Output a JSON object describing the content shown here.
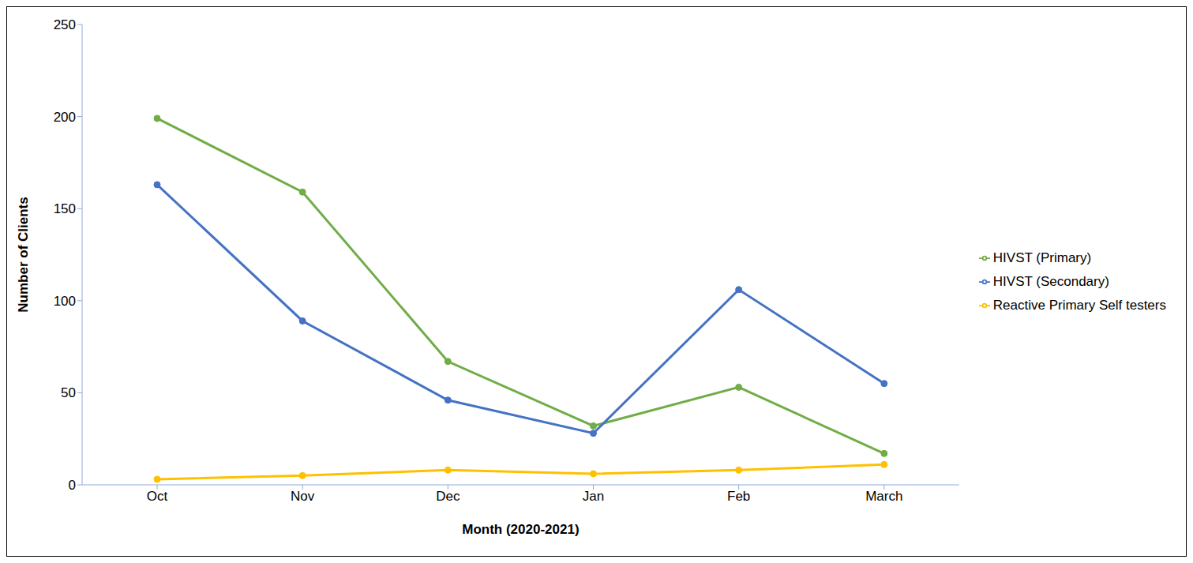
{
  "chart_data": {
    "type": "line",
    "x_label": "Month (2020-2021)",
    "y_label": "Number of Clients",
    "categories": [
      "Oct",
      "Nov",
      "Dec",
      "Jan",
      "Feb",
      "March"
    ],
    "series": [
      {
        "name": "HIVST (Primary)",
        "color": "#70ad47",
        "marker": "circle",
        "values": [
          199,
          159,
          67,
          32,
          53,
          17
        ]
      },
      {
        "name": "HIVST (Secondary)",
        "color": "#4472c4",
        "marker": "circle",
        "values": [
          163,
          89,
          46,
          28,
          106,
          55
        ]
      },
      {
        "name": "Reactive Primary Self testers",
        "color": "#ffc000",
        "marker": "circle",
        "values": [
          3,
          5,
          8,
          6,
          8,
          11
        ]
      }
    ],
    "ylim": [
      0,
      250
    ],
    "yticks": [
      0,
      50,
      100,
      150,
      200,
      250
    ],
    "grid": false,
    "legend": "right"
  }
}
